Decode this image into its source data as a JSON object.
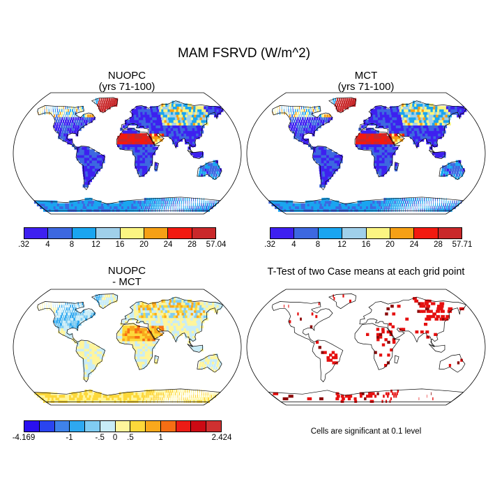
{
  "title": "MAM FSRVD (W/m^2)",
  "panels": {
    "nuopc": {
      "title_line1": "NUOPC",
      "title_line2": "(yrs 71-100)"
    },
    "mct": {
      "title_line1": "MCT",
      "title_line2": "(yrs 71-100)"
    },
    "diff": {
      "title_line1": "NUOPC",
      "title_line2": "- MCT"
    },
    "ttest": {
      "title": "T-Test of two Case means at each grid point",
      "note": "Cells are significant at 0.1 level"
    }
  },
  "colorbars": {
    "nuopc": {
      "colors": [
        "#3e20f0",
        "#3d68e0",
        "#1aa5f0",
        "#a0d0ea",
        "#fbf582",
        "#f6a015",
        "#f21a10",
        "#c9282a"
      ],
      "labels": [
        ".32",
        "4",
        "8",
        "12",
        "16",
        "20",
        "24",
        "28",
        "57.04"
      ]
    },
    "mct": {
      "colors": [
        "#3e20f0",
        "#3d68e0",
        "#1aa5f0",
        "#a0d0ea",
        "#fbf582",
        "#f6a015",
        "#f21a10",
        "#c9282a"
      ],
      "labels": [
        ".32",
        "4",
        "8",
        "12",
        "16",
        "20",
        "24",
        "28",
        "57.71"
      ]
    },
    "diff": {
      "colors": [
        "#2a10f0",
        "#2a44f0",
        "#3f82ea",
        "#2ea8f0",
        "#80ccf2",
        "#c8ecf7",
        "#fff59c",
        "#fdd83a",
        "#f9a81c",
        "#f66e14",
        "#ec1c16",
        "#cc0a14",
        "#cf3030"
      ],
      "labels": [
        "-4.169",
        "-1",
        "-.5",
        "0",
        ".5",
        "1",
        "2.424"
      ],
      "label_bins": [
        0,
        3,
        5,
        6,
        7,
        9,
        13
      ]
    }
  }
}
